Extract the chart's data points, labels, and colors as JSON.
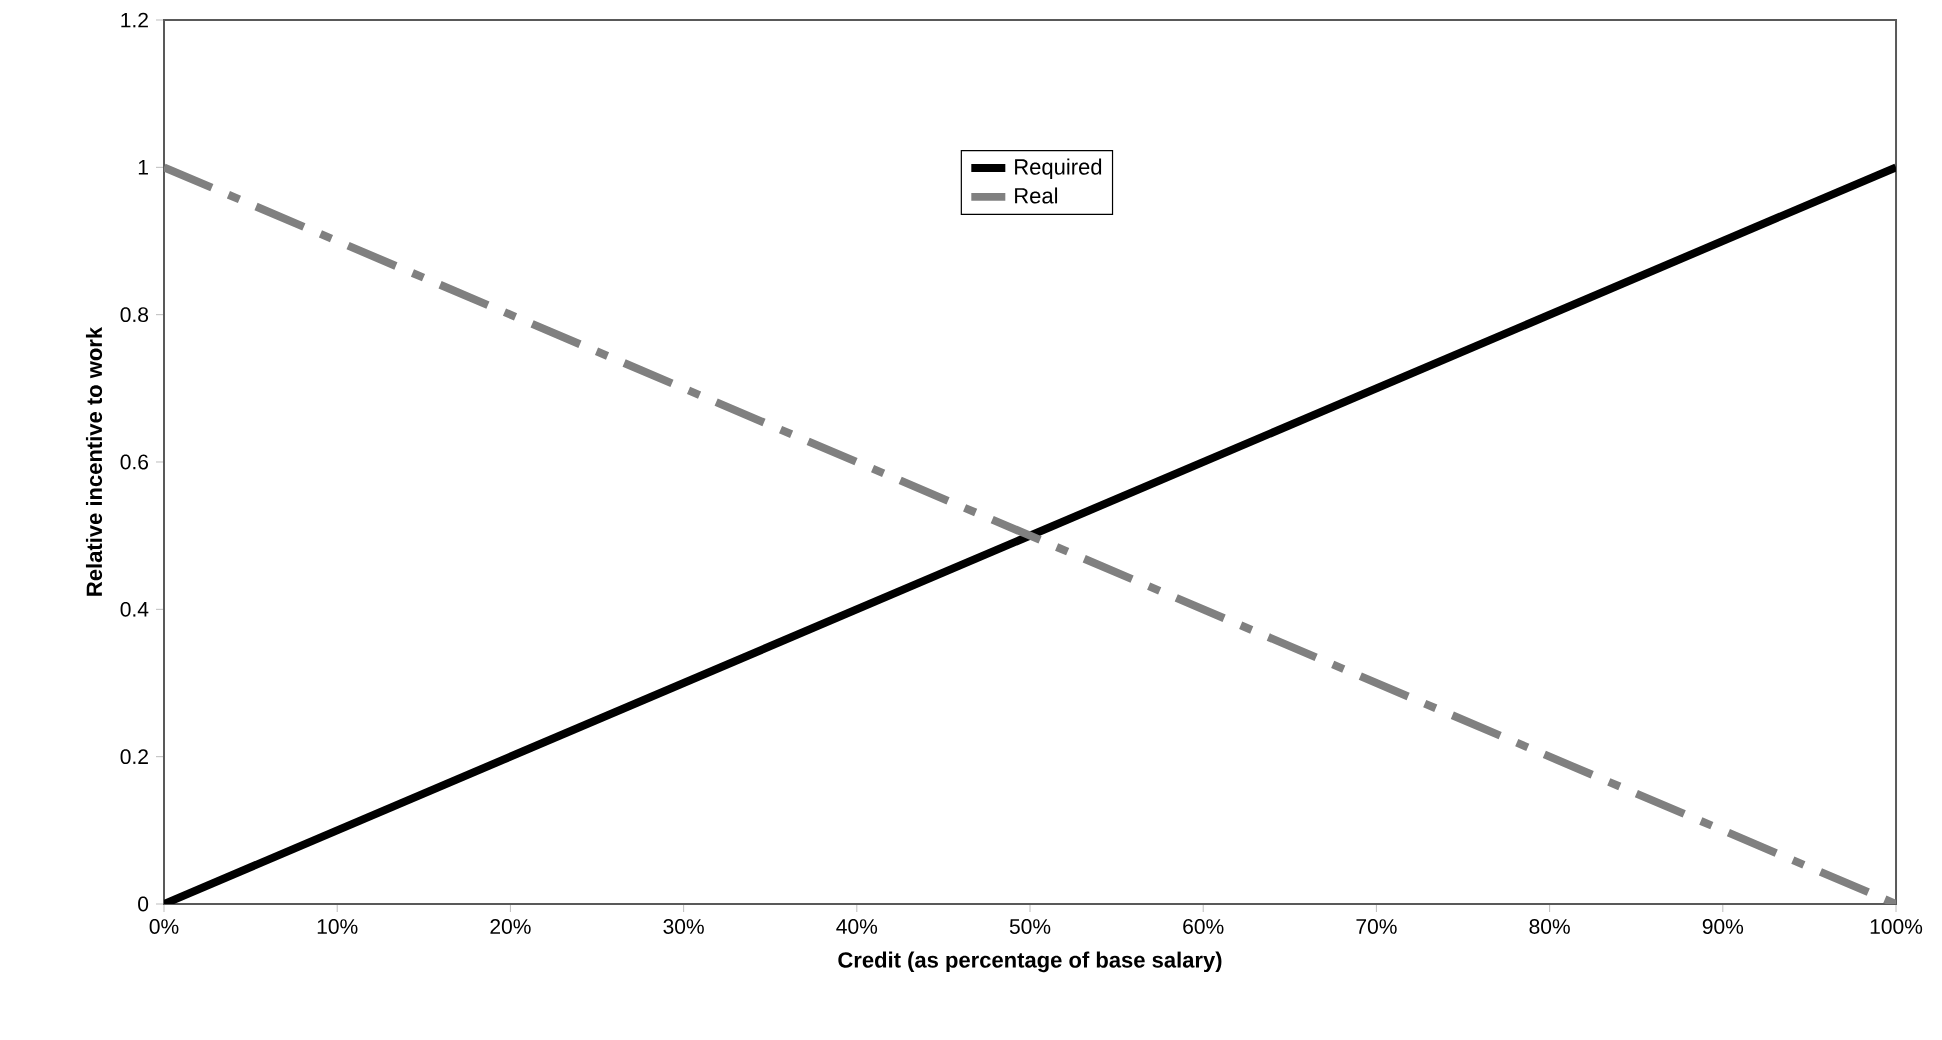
{
  "chart_data": {
    "type": "line",
    "xlabel": "Credit (as percentage of base salary)",
    "ylabel": "Relative incentive to work",
    "x": [
      0,
      100
    ],
    "series": [
      {
        "name": "Required",
        "color": "#000000",
        "values": [
          0,
          1
        ],
        "line_style": "solid"
      },
      {
        "name": "Real",
        "color": "#808080",
        "values": [
          1,
          0
        ],
        "line_style": "dashdot"
      }
    ],
    "xlim": [
      0,
      100
    ],
    "xticks": [
      {
        "value": 0,
        "label": "0%"
      },
      {
        "value": 10,
        "label": "10%"
      },
      {
        "value": 20,
        "label": "20%"
      },
      {
        "value": 30,
        "label": "30%"
      },
      {
        "value": 40,
        "label": "40%"
      },
      {
        "value": 50,
        "label": "50%"
      },
      {
        "value": 60,
        "label": "60%"
      },
      {
        "value": 70,
        "label": "70%"
      },
      {
        "value": 80,
        "label": "80%"
      },
      {
        "value": 90,
        "label": "90%"
      },
      {
        "value": 100,
        "label": "100%"
      }
    ],
    "ylim": [
      0,
      1.2
    ],
    "yticks": [
      0,
      0.2,
      0.4,
      0.6,
      0.8,
      1,
      1.2
    ],
    "grid": false,
    "legend": "top",
    "marker": "none"
  }
}
